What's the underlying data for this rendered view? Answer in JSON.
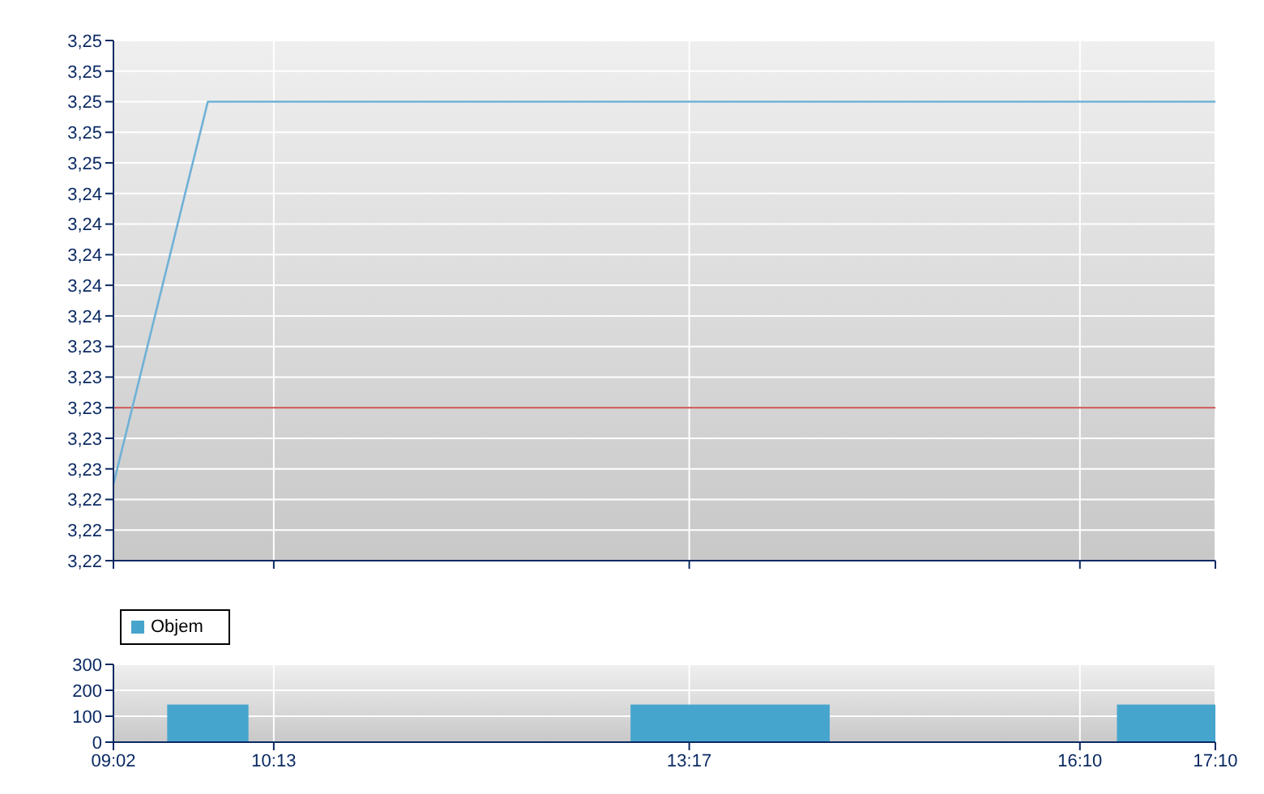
{
  "chart_data": [
    {
      "type": "line",
      "x": [
        9.0333,
        9.73,
        17.1667
      ],
      "series": [
        {
          "color": "#6fb1d6",
          "values": [
            3.225,
            3.25,
            3.25
          ]
        }
      ],
      "xlim": [
        9.0333,
        17.1667
      ],
      "xticks": [
        {
          "value": 9.0333,
          "label": null
        },
        {
          "value": 10.2167,
          "label": null
        },
        {
          "value": 13.2833,
          "label": null
        },
        {
          "value": 16.1667,
          "label": null
        },
        {
          "value": 17.1667,
          "label": null
        }
      ],
      "ylim": [
        3.22,
        3.254
      ],
      "yticks": [
        {
          "value": 3.22,
          "label": "3,22"
        },
        {
          "value": 3.222,
          "label": "3,22"
        },
        {
          "value": 3.224,
          "label": "3,22"
        },
        {
          "value": 3.226,
          "label": "3,23"
        },
        {
          "value": 3.228,
          "label": "3,23"
        },
        {
          "value": 3.23,
          "label": "3,23"
        },
        {
          "value": 3.232,
          "label": "3,23"
        },
        {
          "value": 3.234,
          "label": "3,23"
        },
        {
          "value": 3.236,
          "label": "3,24"
        },
        {
          "value": 3.238,
          "label": "3,24"
        },
        {
          "value": 3.24,
          "label": "3,24"
        },
        {
          "value": 3.242,
          "label": "3,24"
        },
        {
          "value": 3.244,
          "label": "3,24"
        },
        {
          "value": 3.246,
          "label": "3,25"
        },
        {
          "value": 3.248,
          "label": "3,25"
        },
        {
          "value": 3.25,
          "label": "3,25"
        },
        {
          "value": 3.252,
          "label": "3,25"
        },
        {
          "value": 3.254,
          "label": "3,25"
        }
      ],
      "ref_lines": [
        {
          "axis": "y",
          "value": 3.23,
          "color": "#c8504f"
        }
      ],
      "grid": true,
      "marker": "none",
      "tick_labels": "y"
    },
    {
      "type": "histogram",
      "bins": [
        9.43,
        10.03,
        12.85,
        14.32,
        16.44,
        17.1667
      ],
      "series": [
        {
          "name": "Objem",
          "color": "#46a5cc",
          "values": [
            145,
            0,
            145,
            0,
            145
          ]
        }
      ],
      "xlim": [
        9.0333,
        17.1667
      ],
      "xticks": [
        {
          "value": 9.0333,
          "label": "09:02"
        },
        {
          "value": 10.2167,
          "label": "10:13"
        },
        {
          "value": 13.2833,
          "label": "13:17"
        },
        {
          "value": 16.1667,
          "label": "16:10"
        },
        {
          "value": 17.1667,
          "label": "17:10"
        }
      ],
      "ylim": [
        0,
        300
      ],
      "yticks": [
        0,
        100,
        200,
        300
      ],
      "grid": true,
      "legend": "top left"
    }
  ]
}
